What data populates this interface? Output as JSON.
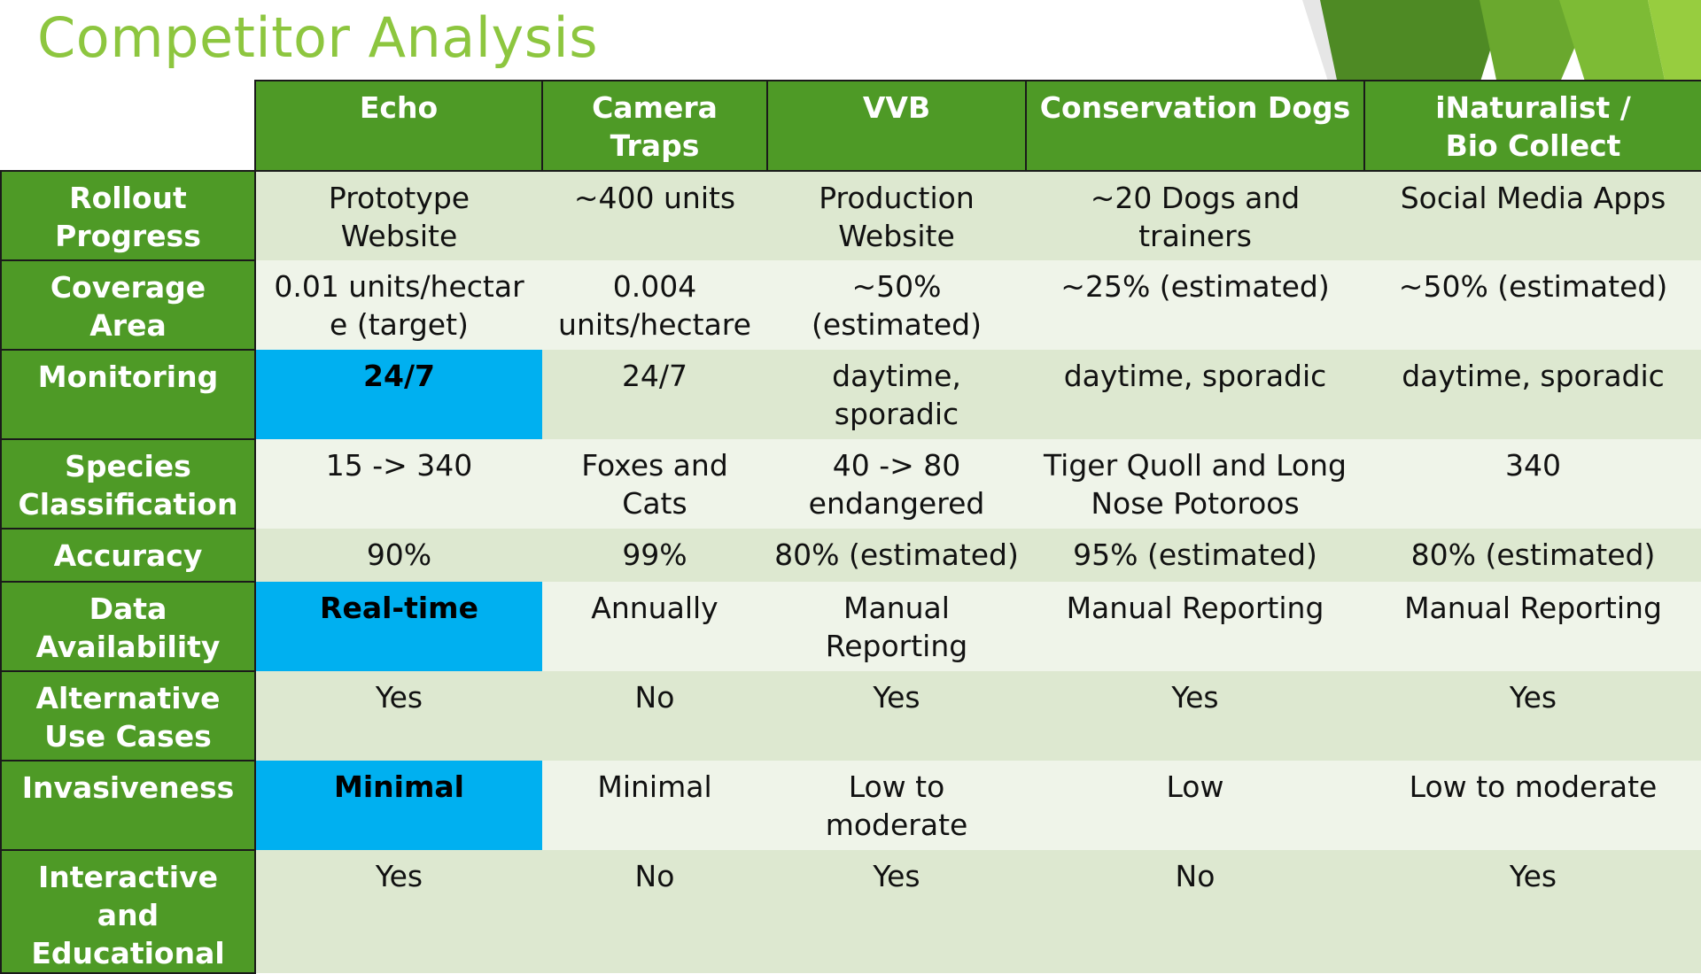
{
  "slide": {
    "title": "Competitor Analysis",
    "colors": {
      "title": "#8dc63f",
      "header_fill": "#4e9a26",
      "row_odd": "#dde8d0",
      "row_even": "#eff4e9",
      "highlight": "#00b0f0"
    }
  },
  "table": {
    "columns": [
      "Echo",
      "Camera\nTraps",
      "VVB",
      "Conservation Dogs",
      "iNaturalist /\nBio Collect"
    ],
    "rows": [
      {
        "label": "Rollout\nProgress",
        "cells": [
          "Prototype\nWebsite",
          "~400 units",
          "Production\nWebsite",
          "~20 Dogs and trainers",
          "Social Media Apps"
        ]
      },
      {
        "label": "Coverage Area",
        "cells": [
          "0.01 units/hectar\ne (target)",
          "0.004\nunits/hectare",
          "~50%\n(estimated)",
          "~25% (estimated)",
          "~50% (estimated)"
        ]
      },
      {
        "label": "Monitoring",
        "cells": [
          "24/7",
          "24/7",
          "daytime,\nsporadic",
          "daytime, sporadic",
          "daytime, sporadic"
        ]
      },
      {
        "label": "Species\nClassification",
        "cells": [
          "15 -> 340",
          "Foxes and\nCats",
          "40 -> 80\nendangered",
          "Tiger Quoll and Long\nNose Potoroos",
          "340"
        ]
      },
      {
        "label": "Accuracy",
        "cells": [
          "90%",
          "99%",
          "80% (estimated)",
          "95% (estimated)",
          "80% (estimated)"
        ]
      },
      {
        "label": "Data\nAvailability",
        "cells": [
          "Real-time",
          "Annually",
          "Manual\nReporting",
          "Manual Reporting",
          "Manual Reporting"
        ]
      },
      {
        "label": "Alternative\nUse Cases",
        "cells": [
          "Yes",
          "No",
          "Yes",
          "Yes",
          "Yes"
        ]
      },
      {
        "label": "Invasiveness",
        "cells": [
          "Minimal",
          "Minimal",
          "Low to\nmoderate",
          "Low",
          "Low to moderate"
        ]
      },
      {
        "label": "Interactive and\nEducational",
        "cells": [
          "Yes",
          "No",
          "Yes",
          "No",
          "Yes"
        ]
      }
    ]
  }
}
